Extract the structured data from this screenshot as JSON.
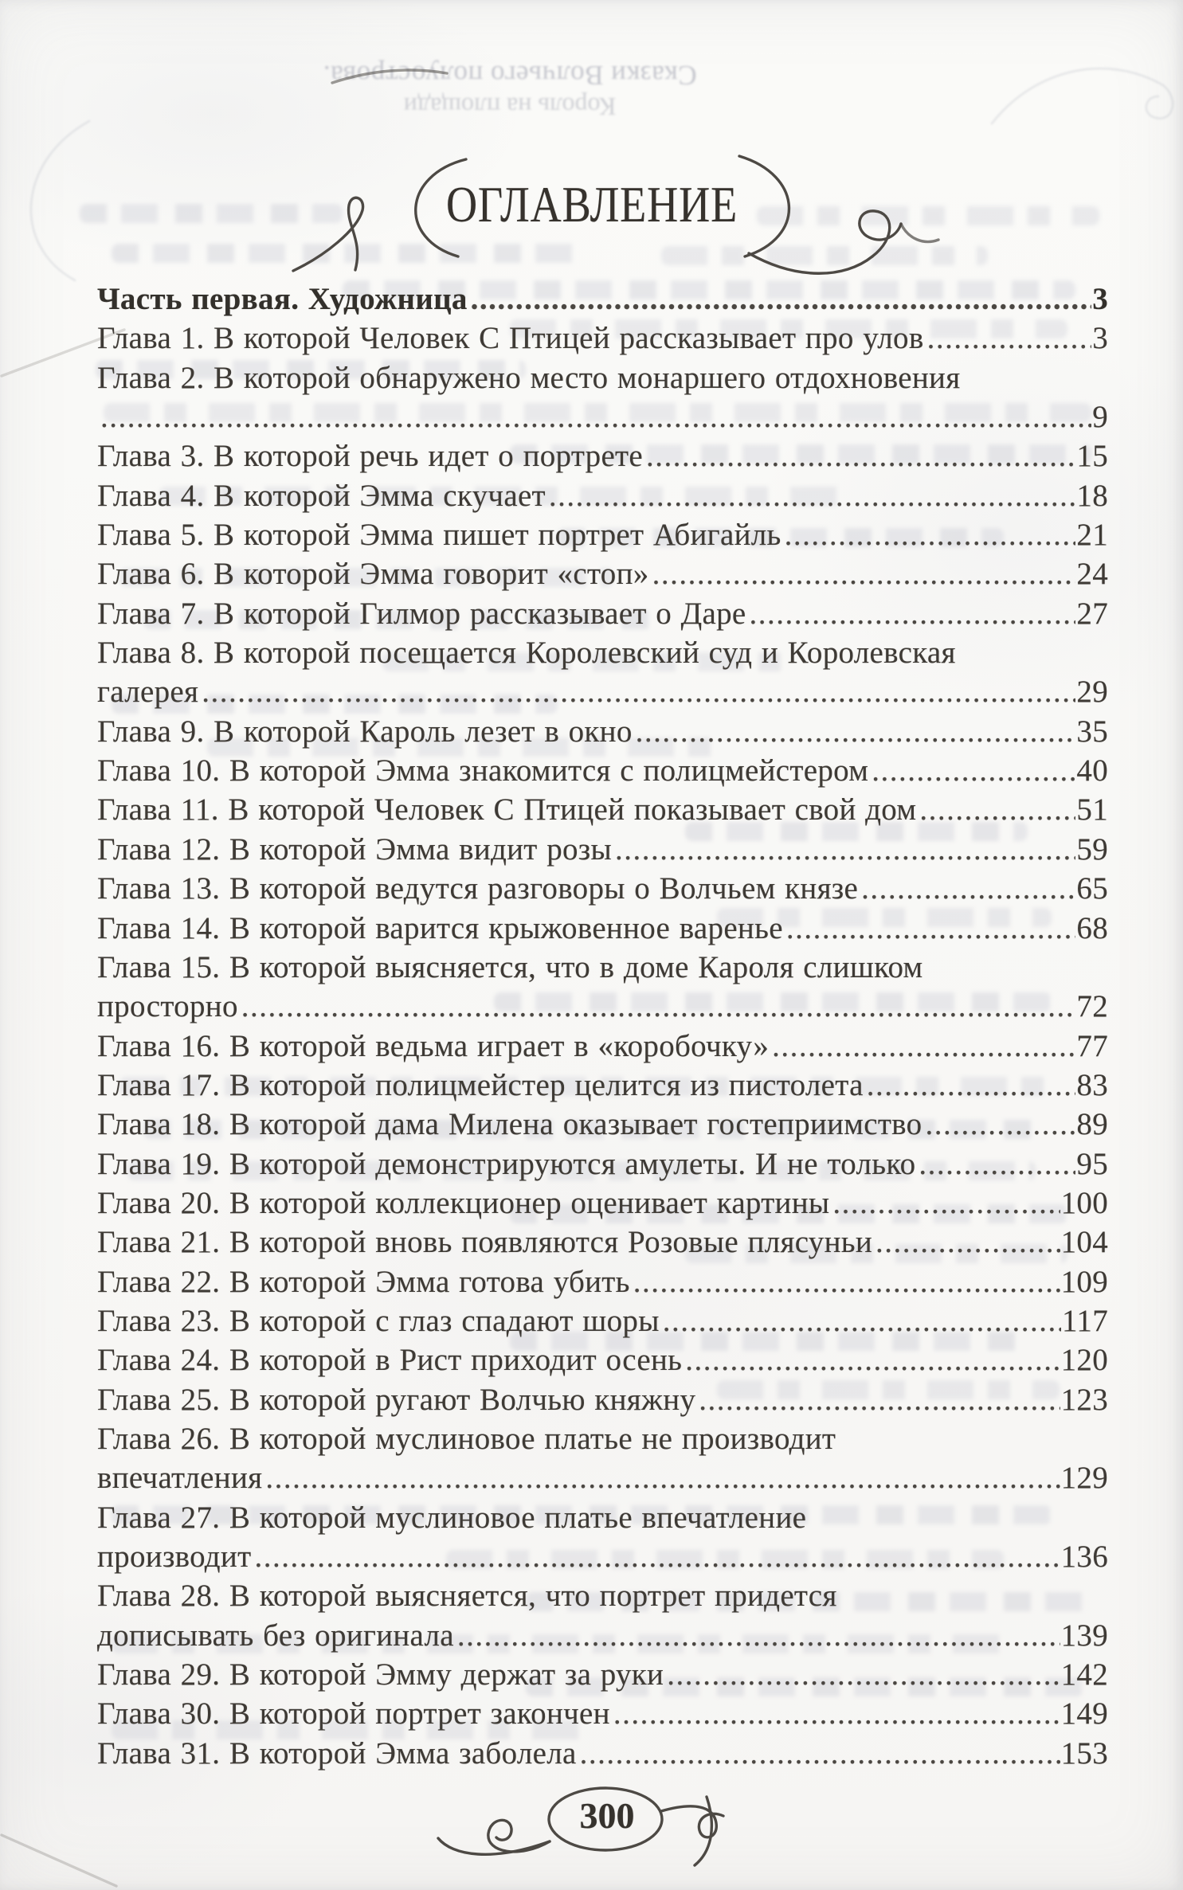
{
  "document": {
    "bleedthrough_header": {
      "series_title": "Сказки Волчьего полуострова.",
      "book_title": "Король на площади"
    },
    "heading": {
      "title": "ОГЛАВЛЕНИЕ"
    },
    "footer": {
      "page_number": "300"
    },
    "toc": {
      "rows": [
        {
          "text": "Часть первая. Художница",
          "page": "3",
          "bold": true
        },
        {
          "text": "Глава 1. В которой Человек С Птицей рассказывает про улов",
          "page": "3"
        },
        {
          "text": "Глава 2. В которой обнаружено место монаршего отдохновения",
          "page": null
        },
        {
          "text": "",
          "page": "9"
        },
        {
          "text": "Глава 3. В которой речь идет о портрете",
          "page": "15"
        },
        {
          "text": "Глава 4. В которой Эмма скучает",
          "page": "18"
        },
        {
          "text": "Глава 5. В которой Эмма пишет портрет Абигайль",
          "page": "21"
        },
        {
          "text": "Глава 6. В которой Эмма говорит «стоп»",
          "page": "24"
        },
        {
          "text": "Глава 7. В которой Гилмор рассказывает о Даре",
          "page": "27"
        },
        {
          "text": "Глава 8. В которой посещается Королевский суд и Королевская",
          "page": null
        },
        {
          "text": "галерея",
          "page": "29"
        },
        {
          "text": "Глава 9. В которой Кароль лезет в окно",
          "page": "35"
        },
        {
          "text": "Глава 10. В которой Эмма знакомится с полицмейстером",
          "page": "40"
        },
        {
          "text": "Глава 11. В которой Человек С Птицей показывает свой дом",
          "page": "51"
        },
        {
          "text": "Глава 12. В которой Эмма видит розы",
          "page": "59"
        },
        {
          "text": "Глава 13. В которой ведутся разговоры о Волчьем князе",
          "page": "65"
        },
        {
          "text": "Глава 14. В которой варится крыжовенное варенье",
          "page": "68"
        },
        {
          "text": "Глава 15. В которой выясняется, что в доме Кароля слишком",
          "page": null
        },
        {
          "text": "просторно",
          "page": "72"
        },
        {
          "text": "Глава 16. В которой ведьма играет в «коробочку»",
          "page": "77"
        },
        {
          "text": "Глава 17. В которой полицмейстер целится из пистолета",
          "page": "83"
        },
        {
          "text": "Глава 18. В которой дама Милена оказывает гостеприимство",
          "page": "89"
        },
        {
          "text": "Глава 19. В которой демонстрируются амулеты. И не только",
          "page": "95"
        },
        {
          "text": "Глава 20. В которой коллекционер оценивает картины",
          "page": "100"
        },
        {
          "text": "Глава 21. В которой вновь появляются Розовые плясуньи",
          "page": "104"
        },
        {
          "text": "Глава 22. В которой Эмма готова убить",
          "page": "109"
        },
        {
          "text": "Глава 23. В которой с глаз спадают шоры",
          "page": "117"
        },
        {
          "text": "Глава 24. В которой в Рист приходит осень",
          "page": "120"
        },
        {
          "text": "Глава 25. В которой ругают Волчью княжну",
          "page": "123"
        },
        {
          "text": "Глава 26. В которой муслиновое платье не производит",
          "page": null
        },
        {
          "text": "впечатления",
          "page": "129"
        },
        {
          "text": "Глава 27. В которой муслиновое платье впечатление",
          "page": null
        },
        {
          "text": "производит",
          "page": "136"
        },
        {
          "text": "Глава 28. В которой выясняется, что портрет придется",
          "page": null
        },
        {
          "text": "дописывать без оригинала",
          "page": "139"
        },
        {
          "text": "Глава 29. В которой Эмму держат за руки",
          "page": "142"
        },
        {
          "text": "Глава 30. В которой портрет закончен",
          "page": "149"
        },
        {
          "text": "Глава 31. В которой Эмма заболела",
          "page": "153"
        }
      ]
    }
  }
}
